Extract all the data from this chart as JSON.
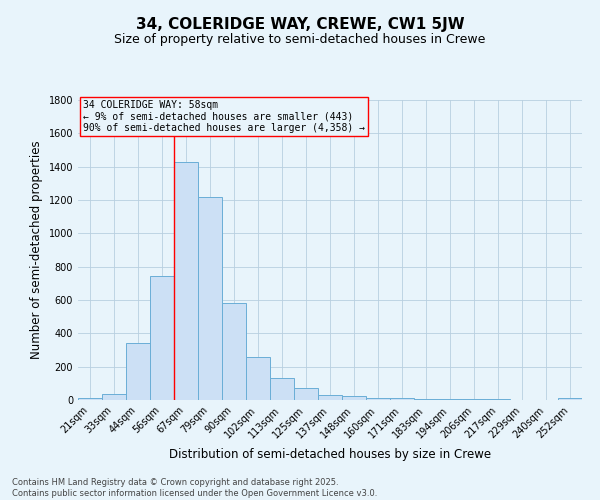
{
  "title": "34, COLERIDGE WAY, CREWE, CW1 5JW",
  "subtitle": "Size of property relative to semi-detached houses in Crewe",
  "xlabel": "Distribution of semi-detached houses by size in Crewe",
  "ylabel": "Number of semi-detached properties",
  "categories": [
    "21sqm",
    "33sqm",
    "44sqm",
    "56sqm",
    "67sqm",
    "79sqm",
    "90sqm",
    "102sqm",
    "113sqm",
    "125sqm",
    "137sqm",
    "148sqm",
    "160sqm",
    "171sqm",
    "183sqm",
    "194sqm",
    "206sqm",
    "217sqm",
    "229sqm",
    "240sqm",
    "252sqm"
  ],
  "values": [
    15,
    35,
    340,
    745,
    1430,
    1220,
    580,
    260,
    130,
    70,
    30,
    25,
    15,
    10,
    8,
    5,
    5,
    5,
    0,
    0,
    15
  ],
  "bar_color": "#cce0f5",
  "bar_edge_color": "#6aaed6",
  "grid_color": "#b8cfe0",
  "background_color": "#e8f4fb",
  "ylim": [
    0,
    1800
  ],
  "yticks": [
    0,
    200,
    400,
    600,
    800,
    1000,
    1200,
    1400,
    1600,
    1800
  ],
  "red_line_index": 3,
  "annotation_text": "34 COLERIDGE WAY: 58sqm\n← 9% of semi-detached houses are smaller (443)\n90% of semi-detached houses are larger (4,358) →",
  "footer_line1": "Contains HM Land Registry data © Crown copyright and database right 2025.",
  "footer_line2": "Contains public sector information licensed under the Open Government Licence v3.0.",
  "title_fontsize": 11,
  "subtitle_fontsize": 9,
  "xlabel_fontsize": 8.5,
  "ylabel_fontsize": 8.5,
  "tick_fontsize": 7,
  "annot_fontsize": 7,
  "footer_fontsize": 6
}
